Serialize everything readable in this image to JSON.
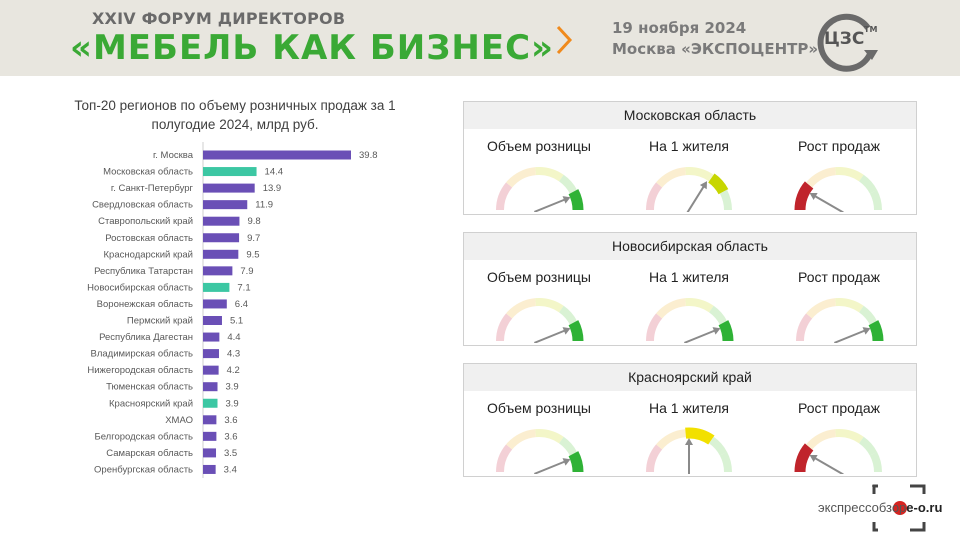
{
  "header": {
    "forum_subtitle": "XXIV ФОРУМ ДИРЕКТОРОВ",
    "forum_title": "«МЕБЕЛЬ КАК БИЗНЕС»",
    "event_date": "19 ноября 2024",
    "event_place": "Москва «ЭКСПОЦЕНТР»",
    "logo_text": "ЦЗС",
    "logo_tm": "TM"
  },
  "colors": {
    "accent_green": "#3aa935",
    "bar_default": "#6a4fb6",
    "bar_highlight": "#3cc7a3"
  },
  "chart_data": {
    "type": "bar",
    "orientation": "horizontal",
    "title": "Топ-20 регионов по объему розничных продаж за 1 полугодие 2024, млрд руб.",
    "categories": [
      "г. Москва",
      "Московская область",
      "г. Санкт-Петербург",
      "Свердловская область",
      "Ставропольский край",
      "Ростовская область",
      "Краснодарский край",
      "Республика Татарстан",
      "Новосибирская область",
      "Воронежская область",
      "Пермский край",
      "Республика Дагестан",
      "Владимирская область",
      "Нижегородская область",
      "Тюменская область",
      "Красноярский край",
      "ХМАО",
      "Белгородская область",
      "Самарская область",
      "Оренбургская область"
    ],
    "values": [
      39.8,
      14.4,
      13.9,
      11.9,
      9.8,
      9.7,
      9.5,
      7.9,
      7.1,
      6.4,
      5.1,
      4.4,
      4.3,
      4.2,
      3.9,
      3.9,
      3.6,
      3.6,
      3.5,
      3.4
    ],
    "highlighted": [
      "Московская область",
      "Новосибирская область",
      "Красноярский край"
    ]
  },
  "gauge_labels": [
    "Объем розницы",
    "На 1 жителя",
    "Рост продаж"
  ],
  "panels": [
    {
      "region": "Московская область",
      "gauges": [
        {
          "level": "high"
        },
        {
          "level": "above-medium"
        },
        {
          "level": "low"
        }
      ]
    },
    {
      "region": "Новосибирская область",
      "gauges": [
        {
          "level": "high"
        },
        {
          "level": "high"
        },
        {
          "level": "high"
        }
      ]
    },
    {
      "region": "Красноярский край",
      "gauges": [
        {
          "level": "high"
        },
        {
          "level": "medium"
        },
        {
          "level": "low"
        }
      ]
    }
  ],
  "watermark": {
    "text_left": "экспрессобзор",
    "text_right": "e-o.ru"
  }
}
